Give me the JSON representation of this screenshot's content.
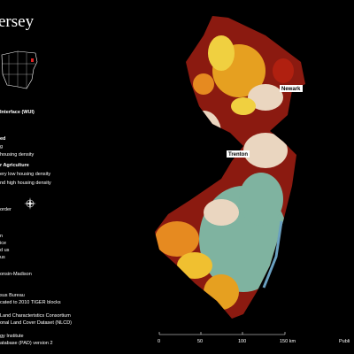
{
  "title": "ersey",
  "legend": {
    "heading": "Interface (WUI)",
    "groups": [
      {
        "title": "ed",
        "items": [
          "g",
          "housing density"
        ]
      },
      {
        "title": "r Agriculture",
        "items": [
          "ery low housing density",
          "nd high housing density"
        ]
      }
    ],
    "border": "order"
  },
  "credits": {
    "authors": [
      "n",
      "ice",
      "d us",
      "us"
    ],
    "institution": "onsin-Madison",
    "sources": [
      "sus Bureau",
      "cated to 2010 TIGER blocks",
      "Land Characteristics Consortium",
      "onal Land Cover Dataset (NLCD)",
      "gy Institute",
      "atabase (PAD) version 2"
    ]
  },
  "cities": [
    "Newark",
    "Trenton"
  ],
  "scale": {
    "ticks": [
      "0",
      "50",
      "100",
      "150 km"
    ]
  },
  "footer": "Publi"
}
